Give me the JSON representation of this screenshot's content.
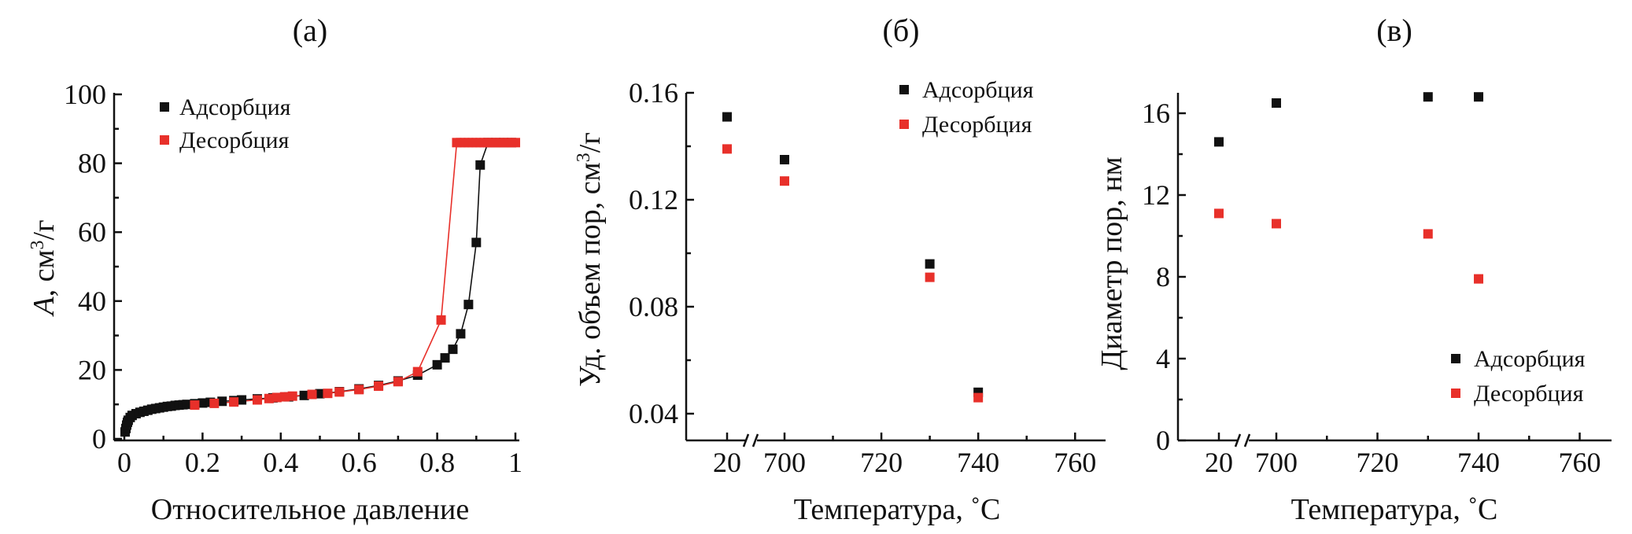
{
  "chart_data": [
    {
      "type": "scatter",
      "panel_label": "(а)",
      "xlabel": "Относительное давление",
      "ylabel": "A, см³/г",
      "ylabel_italic_part": "A",
      "ylabel_rest": ", см",
      "ylabel_sup": "3",
      "ylabel_tail": "/г",
      "xlim": [
        0,
        1
      ],
      "ylim": [
        0,
        100
      ],
      "xticks": [
        0,
        0.2,
        0.4,
        0.6,
        0.8,
        1
      ],
      "xtick_labels": [
        "0",
        "0.2",
        "0.4",
        "0.6",
        "0.8",
        "1"
      ],
      "yticks": [
        0,
        20,
        40,
        60,
        80,
        100
      ],
      "ytick_labels": [
        "0",
        "20",
        "40",
        "60",
        "80",
        "100"
      ],
      "connected": true,
      "legend_position": "top-left",
      "series": [
        {
          "name": "Адсорбция",
          "color": "#111111",
          "x": [
            0.002,
            0.004,
            0.006,
            0.008,
            0.01,
            0.015,
            0.02,
            0.03,
            0.04,
            0.05,
            0.06,
            0.07,
            0.08,
            0.09,
            0.1,
            0.11,
            0.12,
            0.13,
            0.14,
            0.15,
            0.16,
            0.18,
            0.2,
            0.22,
            0.25,
            0.28,
            0.3,
            0.34,
            0.38,
            0.42,
            0.46,
            0.5,
            0.55,
            0.6,
            0.65,
            0.7,
            0.75,
            0.8,
            0.82,
            0.84,
            0.86,
            0.88,
            0.9,
            0.91,
            0.93,
            0.95,
            0.97,
            0.99
          ],
          "y": [
            2.0,
            3.0,
            4.0,
            4.8,
            5.4,
            6.2,
            6.8,
            7.3,
            7.7,
            8.0,
            8.3,
            8.6,
            8.8,
            9.0,
            9.2,
            9.4,
            9.5,
            9.7,
            9.8,
            9.9,
            10.0,
            10.2,
            10.4,
            10.6,
            10.9,
            11.1,
            11.3,
            11.6,
            11.9,
            12.2,
            12.6,
            13.1,
            13.7,
            14.5,
            15.5,
            16.8,
            18.5,
            21.5,
            23.5,
            26.0,
            30.5,
            39.0,
            57.0,
            79.5,
            86.0,
            86.0,
            86.0,
            86.0
          ]
        },
        {
          "name": "Десорбция",
          "color": "#e8302a",
          "x": [
            0.18,
            0.23,
            0.28,
            0.34,
            0.37,
            0.39,
            0.41,
            0.43,
            0.48,
            0.52,
            0.55,
            0.6,
            0.65,
            0.7,
            0.75,
            0.81,
            0.85,
            0.86,
            0.87,
            0.88,
            0.89,
            0.9,
            0.91,
            0.92,
            0.93,
            0.94,
            0.95,
            0.96,
            0.97,
            0.98,
            0.99,
            1.0
          ],
          "y": [
            9.8,
            10.3,
            10.7,
            11.3,
            11.7,
            12.0,
            12.2,
            12.4,
            12.9,
            13.2,
            13.6,
            14.3,
            15.3,
            16.6,
            19.5,
            34.5,
            86.0,
            86.0,
            86.0,
            86.0,
            86.0,
            86.0,
            86.0,
            86.0,
            86.0,
            86.0,
            86.0,
            86.0,
            86.0,
            86.0,
            86.0,
            86.0
          ]
        }
      ]
    },
    {
      "type": "scatter",
      "panel_label": "(б)",
      "xlabel": "Температура, ˚С",
      "ylabel": "Уд. объем пор, см³/г",
      "ylabel_rest": "Уд. объем пор, см",
      "ylabel_sup": "3",
      "ylabel_tail": "/г",
      "x_break": true,
      "categories_x": [
        20,
        700,
        720,
        730,
        740,
        760
      ],
      "xtick_labels": [
        "20",
        "700",
        "720",
        "740",
        "760"
      ],
      "xtick_values": [
        20,
        700,
        720,
        740,
        760
      ],
      "ylim": [
        0.03,
        0.16
      ],
      "yticks": [
        0.04,
        0.08,
        0.12,
        0.16
      ],
      "ytick_labels": [
        "0.04",
        "0.08",
        "0.12",
        "0.16"
      ],
      "legend_position": "top-right",
      "series": [
        {
          "name": "Адсорбция",
          "color": "#111111",
          "x": [
            20,
            700,
            730,
            740
          ],
          "y": [
            0.151,
            0.135,
            0.096,
            0.048
          ]
        },
        {
          "name": "Десорбция",
          "color": "#e8302a",
          "x": [
            20,
            700,
            730,
            740
          ],
          "y": [
            0.139,
            0.127,
            0.091,
            0.046
          ]
        }
      ]
    },
    {
      "type": "scatter",
      "panel_label": "(в)",
      "xlabel": "Температура, ˚С",
      "ylabel": "Диаметр пор, нм",
      "x_break": true,
      "xtick_labels": [
        "20",
        "700",
        "720",
        "740",
        "760"
      ],
      "xtick_values": [
        20,
        700,
        720,
        740,
        760
      ],
      "ylim": [
        0,
        17
      ],
      "yticks": [
        0,
        4,
        8,
        12,
        16
      ],
      "ytick_labels": [
        "0",
        "4",
        "8",
        "12",
        "16"
      ],
      "legend_position": "bottom-right",
      "series": [
        {
          "name": "Адсорбция",
          "color": "#111111",
          "x": [
            20,
            700,
            730,
            740
          ],
          "y": [
            14.6,
            16.5,
            16.8,
            16.8
          ]
        },
        {
          "name": "Десорбция",
          "color": "#e8302a",
          "x": [
            20,
            700,
            730,
            740
          ],
          "y": [
            11.1,
            10.6,
            10.1,
            7.9
          ]
        }
      ]
    }
  ]
}
